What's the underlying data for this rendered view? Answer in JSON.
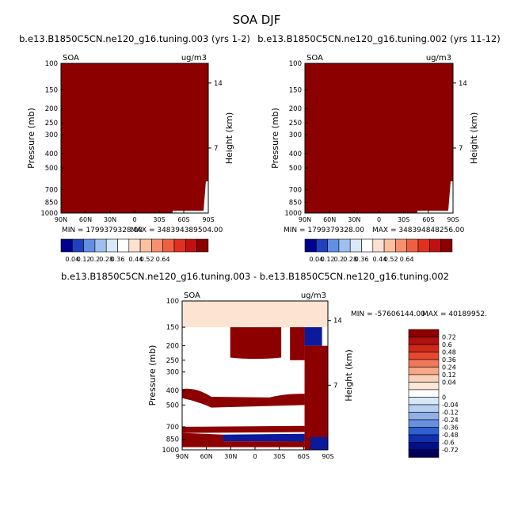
{
  "title": "SOA DJF",
  "colors": {
    "seq": [
      "#00008c",
      "#2040c0",
      "#6090e0",
      "#a0bff0",
      "#d8e8f8",
      "#ffffff",
      "#fde0d0",
      "#fbc0a0",
      "#f89070",
      "#f06040",
      "#e03020",
      "#c01010",
      "#8c0000"
    ],
    "div": [
      "#8c0000",
      "#b01010",
      "#d02818",
      "#e84830",
      "#f07858",
      "#f8a888",
      "#fbd0b8",
      "#fde8d8",
      "#ffffff",
      "#d8e8f8",
      "#b8d0f0",
      "#90b0e8",
      "#6890e0",
      "#3060d0",
      "#1030b0",
      "#00108c",
      "#00005a"
    ],
    "field_red": "#8c0000",
    "field_blue": "#0a1a9a",
    "field_peach": "#fde4d2",
    "field_navy": "#000060"
  },
  "chart_data": [
    {
      "type": "contour",
      "title": "b.e13.B1850C5CN.ne120_g16.tuning.003 (yrs 1-2)",
      "left_label": "SOA",
      "right_label": "ug/m3",
      "ylabel": "Pressure (mb)",
      "right_axis_label": "Height (km)",
      "x_ticks": [
        "90N",
        "60N",
        "30N",
        "0",
        "30S",
        "60S",
        "90S"
      ],
      "y_ticks": [
        "100",
        "150",
        "200",
        "250",
        "300",
        "400",
        "500",
        "700",
        "850",
        "1000"
      ],
      "height_ticks": [
        "14",
        "7"
      ],
      "ylim": [
        100,
        1000
      ],
      "min_label": "MIN = 1799379328.00",
      "max_label": "MAX = 348394389504.00",
      "colorbar_levels": [
        "0.04",
        "0.12",
        "0.2",
        "0.28",
        "0.36",
        "0.44",
        "0.52",
        "0.64"
      ]
    },
    {
      "type": "contour",
      "title": "b.e13.B1850C5CN.ne120_g16.tuning.002 (yrs 11-12)",
      "left_label": "SOA",
      "right_label": "ug/m3",
      "ylabel": "Pressure (mb)",
      "right_axis_label": "Height (km)",
      "x_ticks": [
        "90N",
        "60N",
        "30N",
        "0",
        "30S",
        "60S",
        "90S"
      ],
      "y_ticks": [
        "100",
        "150",
        "200",
        "250",
        "300",
        "400",
        "500",
        "700",
        "850",
        "1000"
      ],
      "height_ticks": [
        "14",
        "7"
      ],
      "ylim": [
        100,
        1000
      ],
      "min_label": "MIN = 1799379328.00",
      "max_label": "MAX = 348394848256.00",
      "colorbar_levels": [
        "0.04",
        "0.12",
        "0.2",
        "0.28",
        "0.36",
        "0.44",
        "0.52",
        "0.64"
      ]
    },
    {
      "type": "contour",
      "title": "b.e13.B1850C5CN.ne120_g16.tuning.003 - b.e13.B1850C5CN.ne120_g16.tuning.002",
      "left_label": "SOA",
      "right_label": "ug/m3",
      "ylabel": "Pressure (mb)",
      "right_axis_label": "Height (km)",
      "x_ticks": [
        "90N",
        "60N",
        "30N",
        "0",
        "30S",
        "60S",
        "90S"
      ],
      "y_ticks": [
        "100",
        "150",
        "200",
        "250",
        "300",
        "400",
        "500",
        "700",
        "850",
        "1000"
      ],
      "height_ticks": [
        "14",
        "7"
      ],
      "ylim": [
        100,
        1000
      ],
      "min_label": "MIN = -57606144.00",
      "max_label": "MAX = 40189952.",
      "colorbar_levels": [
        "0.72",
        "0.6",
        "0.48",
        "0.36",
        "0.24",
        "0.12",
        "0.04",
        "0",
        "-0.04",
        "-0.12",
        "-0.24",
        "-0.36",
        "-0.48",
        "-0.6",
        "-0.72"
      ]
    }
  ]
}
